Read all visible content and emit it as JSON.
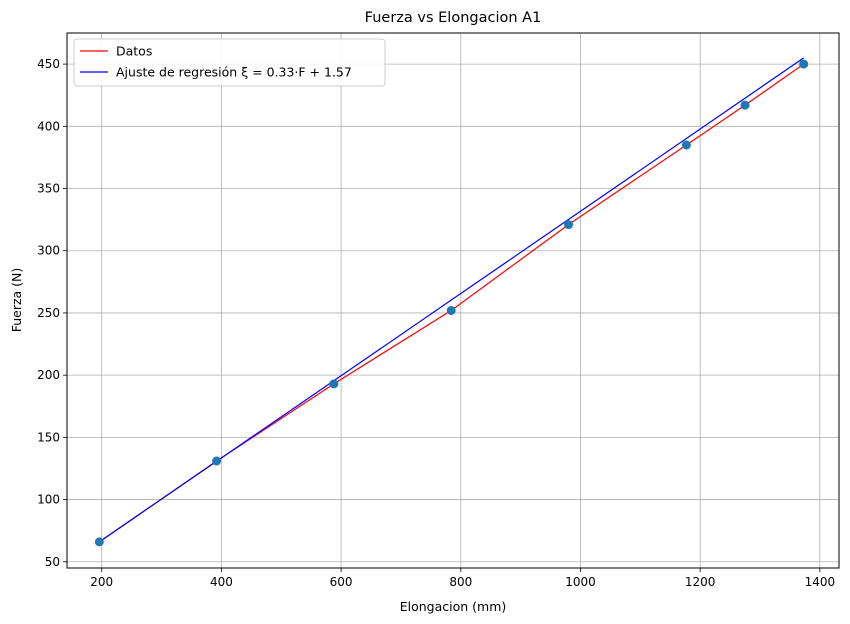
{
  "chart_data": {
    "type": "line",
    "title": "Fuerza vs Elongacion A1",
    "xlabel": "Elongacion (mm)",
    "ylabel": "Fuerza (N)",
    "xlim": [
      142,
      1432
    ],
    "ylim": [
      45,
      475
    ],
    "xticks": [
      200,
      400,
      600,
      800,
      1000,
      1200,
      1400
    ],
    "yticks": [
      50,
      100,
      150,
      200,
      250,
      300,
      350,
      400,
      450
    ],
    "grid": true,
    "legend_position": "top-left",
    "points": {
      "x": [
        196,
        392,
        588,
        784,
        980,
        1177,
        1275,
        1373
      ],
      "y": [
        66,
        131,
        193,
        252,
        321,
        385,
        417,
        450
      ],
      "color": "#1f77b4"
    },
    "series": [
      {
        "name": "Datos",
        "color": "#ff0000",
        "x": [
          196,
          392,
          588,
          784,
          980,
          1177,
          1275,
          1373
        ],
        "y": [
          66,
          131,
          193,
          252,
          321,
          385,
          417,
          450
        ]
      },
      {
        "name": "Ajuste de regresión ξ = 0.33·F + 1.57",
        "color": "#0000ff",
        "x": [
          196,
          1373
        ],
        "y": [
          66,
          455
        ]
      }
    ]
  }
}
